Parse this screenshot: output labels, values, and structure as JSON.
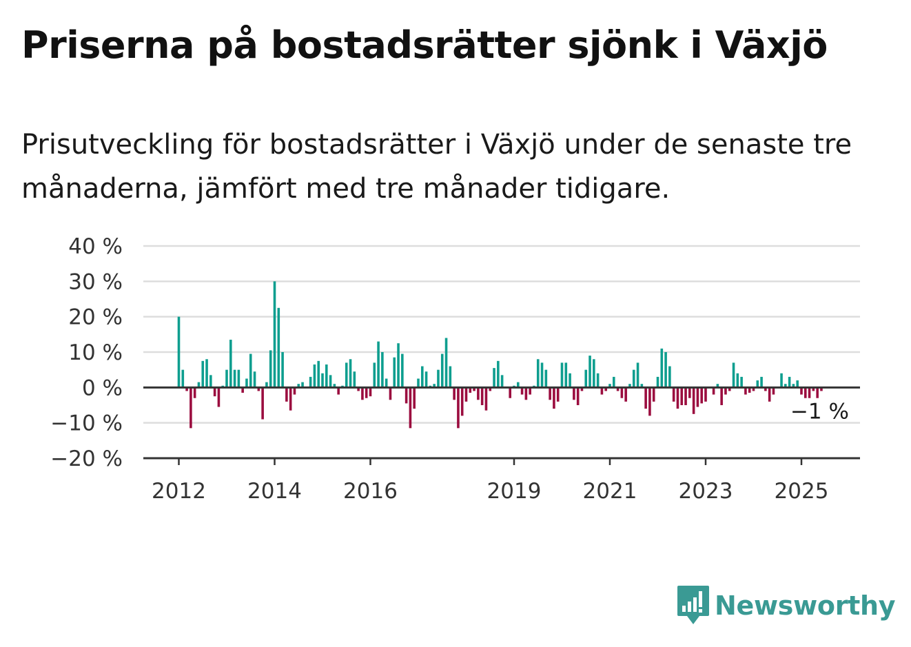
{
  "title": "Priserna på bostadsrätter sjönk i Växjö",
  "subtitle": "Prisutveckling för bostadsrätter i Växjö under de senaste tre månaderna, jämfört med tre månader tidigare.",
  "brand": {
    "name": "Newsworthy",
    "color": "#3a9a94"
  },
  "colors": {
    "positive": "#0e9e8f",
    "negative": "#9b0d3f",
    "grid": "#dddddd",
    "axis": "#333333"
  },
  "chart_data": {
    "type": "bar",
    "x_start": "2012-01",
    "x_end": "2025-06",
    "ylim": [
      -20,
      40
    ],
    "y_ticks": [
      "40 %",
      "30 %",
      "20 %",
      "10 %",
      "0 %",
      "−10 %",
      "−20 %"
    ],
    "y_tick_values": [
      40,
      30,
      20,
      10,
      0,
      -10,
      -20
    ],
    "x_ticks": [
      "2012",
      "2014",
      "2016",
      "2019",
      "2021",
      "2023",
      "2025"
    ],
    "grid": true,
    "last_value_label": "−1 %",
    "series": [
      {
        "values": [
          20,
          5,
          -1,
          -11.5,
          -3,
          1.5,
          7.5,
          8,
          3.5,
          -2.5,
          -5.5,
          0.5,
          5,
          13.5,
          5,
          5,
          -1.5,
          2.5,
          9.5,
          4.5,
          -1,
          -9,
          1.5,
          10.5,
          30,
          22.5,
          10,
          -4,
          -6.5,
          -2,
          1,
          1.5,
          0,
          3,
          6.5,
          7.5,
          4,
          6.5,
          3.5,
          1,
          -2,
          0.5,
          7,
          8,
          4.5,
          -1,
          -3.5,
          -3,
          -2.5,
          7,
          13,
          10,
          2.5,
          -3.5,
          8.5,
          12.5,
          9.5,
          -4.5,
          -11.5,
          -6,
          2.5,
          6,
          4.5,
          0.5,
          1,
          5,
          9.5,
          14,
          6,
          -3.5,
          -11.5,
          -8,
          -4,
          -1.5,
          -1,
          -3.5,
          -5,
          -6.5,
          -1,
          5.5,
          7.5,
          3.5,
          0,
          -3,
          0.5,
          1.5,
          -2,
          -3.5,
          -2,
          0.5,
          8,
          7,
          5,
          -3.5,
          -6,
          -4,
          7,
          7,
          4,
          -3.5,
          -5,
          -1,
          5,
          9,
          8,
          4,
          -2,
          -1,
          1,
          3,
          -1,
          -3,
          -4,
          1,
          5,
          7,
          1,
          -6,
          -8,
          -4,
          3,
          11,
          10,
          6,
          -4,
          -6,
          -5,
          -5,
          -3,
          -7.5,
          -5.5,
          -4.5,
          -4,
          0,
          -2,
          1,
          -5,
          -2,
          -1,
          7,
          4,
          3,
          -2,
          -1.5,
          -1,
          2,
          3,
          -1,
          -4,
          -2,
          0,
          4,
          1,
          3,
          1,
          2,
          -2,
          -3,
          -3,
          -1,
          -3,
          -1
        ]
      }
    ]
  }
}
